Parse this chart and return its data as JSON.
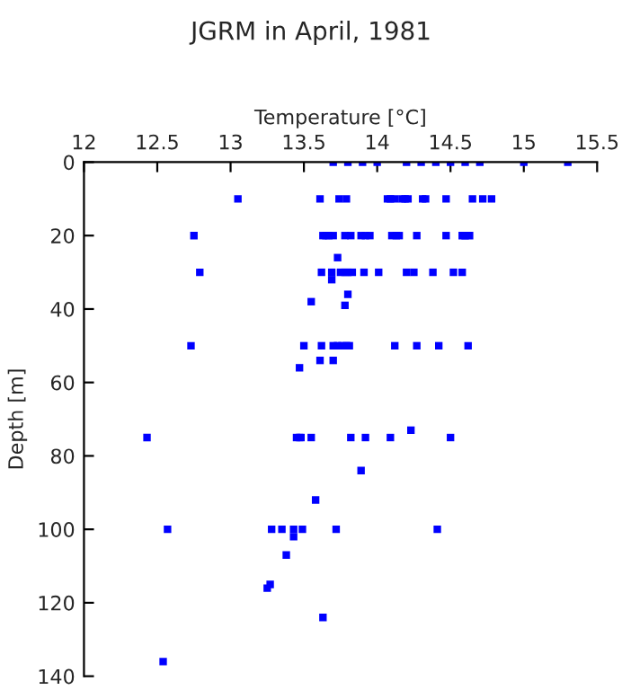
{
  "chart_data": {
    "type": "scatter",
    "title": "JGRM in April, 1981",
    "xlabel": "Temperature [°C]",
    "ylabel": "Depth [m]",
    "xlim": [
      12,
      15.5
    ],
    "xticks": [
      12,
      12.5,
      13,
      13.5,
      14,
      14.5,
      15,
      15.5
    ],
    "ylim": [
      140,
      0
    ],
    "yticks": [
      0,
      20,
      40,
      60,
      80,
      100,
      120,
      140
    ],
    "marker": "square",
    "grid": false,
    "legend": false,
    "series": [
      {
        "color": "#0000ff",
        "x": [
          13.7,
          13.8,
          13.9,
          14.0,
          14.2,
          14.3,
          14.4,
          14.5,
          14.6,
          14.7,
          15.0,
          15.3,
          13.05,
          13.61,
          13.74,
          13.79,
          14.07,
          14.09,
          14.12,
          14.17,
          14.19,
          14.21,
          14.31,
          14.33,
          14.47,
          14.65,
          14.72,
          14.78,
          12.75,
          13.63,
          13.65,
          13.67,
          13.7,
          13.78,
          13.82,
          13.89,
          13.92,
          13.95,
          14.1,
          14.13,
          14.15,
          14.27,
          14.47,
          14.58,
          14.6,
          14.63,
          13.73,
          12.79,
          13.62,
          13.69,
          13.75,
          13.78,
          13.8,
          13.83,
          13.91,
          14.01,
          14.2,
          14.25,
          14.38,
          14.52,
          14.58,
          13.69,
          13.8,
          13.55,
          13.78,
          12.73,
          13.5,
          13.62,
          13.7,
          13.73,
          13.76,
          13.79,
          13.81,
          14.12,
          14.27,
          14.42,
          14.62,
          13.61,
          13.7,
          13.47,
          12.43,
          13.45,
          13.47,
          13.48,
          13.55,
          13.82,
          13.92,
          14.09,
          14.5,
          14.23,
          13.89,
          13.58,
          12.57,
          13.28,
          13.35,
          13.43,
          13.49,
          13.72,
          14.41,
          13.43,
          13.38,
          13.27,
          13.25,
          13.63,
          12.54
        ],
        "values": [
          0,
          0,
          0,
          0,
          0,
          0,
          0,
          0,
          0,
          0,
          0,
          0,
          10,
          10,
          10,
          10,
          10,
          10,
          10,
          10,
          10,
          10,
          10,
          10,
          10,
          10,
          10,
          10,
          20,
          20,
          20,
          20,
          20,
          20,
          20,
          20,
          20,
          20,
          20,
          20,
          20,
          20,
          20,
          20,
          20,
          20,
          26,
          30,
          30,
          30,
          30,
          30,
          30,
          30,
          30,
          30,
          30,
          30,
          30,
          30,
          30,
          32,
          36,
          38,
          39,
          50,
          50,
          50,
          50,
          50,
          50,
          50,
          50,
          50,
          50,
          50,
          50,
          54,
          54,
          56,
          75,
          75,
          75,
          75,
          75,
          75,
          75,
          75,
          75,
          73,
          84,
          92,
          100,
          100,
          100,
          100,
          100,
          100,
          100,
          102,
          107,
          115,
          116,
          124,
          136
        ]
      }
    ]
  }
}
